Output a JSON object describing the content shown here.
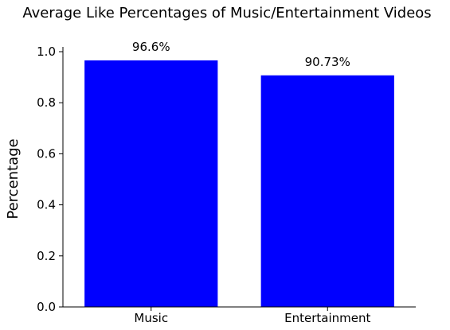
{
  "chart_data": {
    "type": "bar",
    "title": "Average Like Percentages of Music/Entertainment Videos",
    "xlabel": "",
    "ylabel": "Percentage",
    "categories": [
      "Music",
      "Entertainment"
    ],
    "values": [
      0.966,
      0.9073
    ],
    "data_labels": [
      "96.6%",
      "90.73%"
    ],
    "ylim": [
      0,
      1.0
    ],
    "yticks": [
      0.0,
      0.2,
      0.4,
      0.6,
      0.8,
      1.0
    ],
    "ytick_labels": [
      "0.0",
      "0.2",
      "0.4",
      "0.6",
      "0.8",
      "1.0"
    ],
    "bar_color": "#0000ff",
    "grid": false,
    "legend": "none"
  }
}
